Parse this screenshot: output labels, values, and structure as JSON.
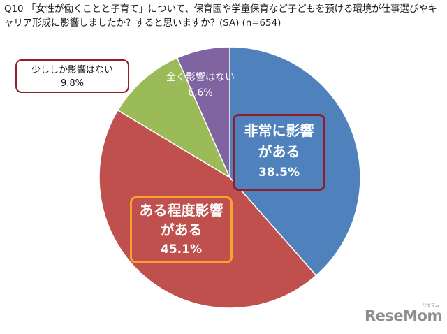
{
  "question": "Q10 「女性が働くことと子育て」について、保育園や学童保育など子どもを預ける環境が仕事選びやキャリア形成に影響しましたか？すると思いますか？(SA) (n=654)",
  "chart_data": {
    "type": "pie",
    "title": "",
    "direction": "clockwise",
    "start": "top",
    "slices": [
      {
        "label_line1": "非常に影響",
        "label_line2": "がある",
        "value": 38.5,
        "value_text": "38.5%",
        "color": "#4f81bd"
      },
      {
        "label_line1": "ある程度影響",
        "label_line2": "がある",
        "value": 45.1,
        "value_text": "45.1%",
        "color": "#c0504d"
      },
      {
        "label_line1": "少ししか影響はない",
        "value": 9.8,
        "value_text": "9.8%",
        "color": "#9bbb59"
      },
      {
        "label_line1": "全く影響はない",
        "value": 6.6,
        "value_text": "6.6%",
        "color": "#8064a2"
      }
    ]
  },
  "logo": {
    "text": "ReseMom",
    "sub": "リセマム"
  }
}
